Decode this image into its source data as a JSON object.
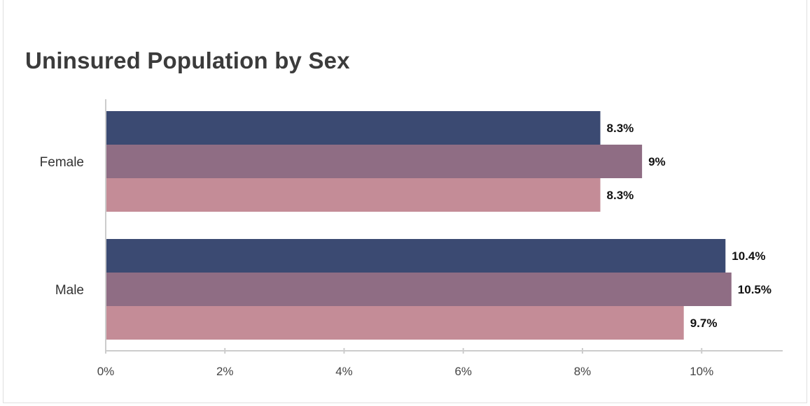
{
  "chart_data": {
    "type": "bar",
    "orientation": "horizontal",
    "title": "Uninsured Population by Sex",
    "categories": [
      "Female",
      "Male"
    ],
    "series": [
      {
        "values": [
          8.3,
          10.4
        ],
        "labels": [
          "8.3%",
          "10.4%"
        ],
        "color": "#3b4a72"
      },
      {
        "values": [
          9,
          10.5
        ],
        "labels": [
          "9%",
          "10.5%"
        ],
        "color": "#8f6d84"
      },
      {
        "values": [
          8.3,
          9.7
        ],
        "labels": [
          "8.3%",
          "9.7%"
        ],
        "color": "#c48c97"
      }
    ],
    "xlim": [
      0,
      11.36
    ],
    "xticks": [
      0,
      2,
      4,
      6,
      8,
      10
    ],
    "xtick_labels": [
      "0%",
      "2%",
      "4%",
      "6%",
      "8%",
      "10%"
    ],
    "grid": false,
    "legend": "none"
  }
}
